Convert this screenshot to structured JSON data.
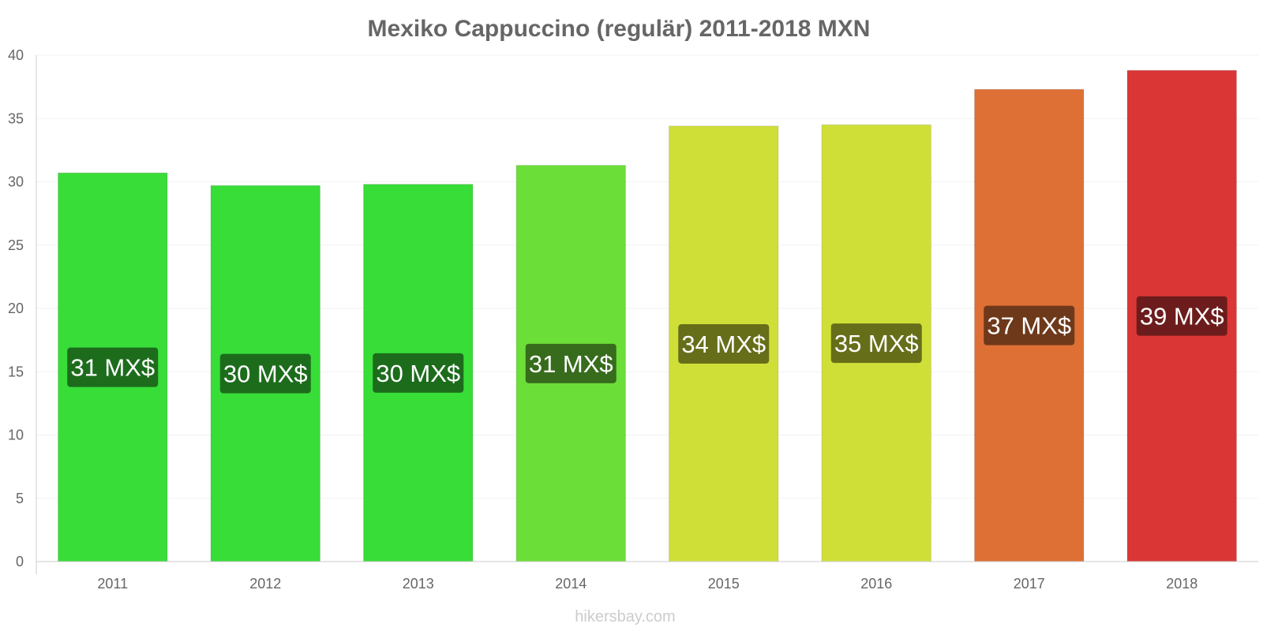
{
  "chart_data": {
    "type": "bar",
    "title": "Mexiko Cappuccino (regulär) 2011-2018 MXN",
    "xlabel": "",
    "ylabel": "",
    "ylim": [
      0,
      40
    ],
    "yticks": [
      0,
      5,
      10,
      15,
      20,
      25,
      30,
      35,
      40
    ],
    "grid": true,
    "categories": [
      "2011",
      "2012",
      "2013",
      "2014",
      "2015",
      "2016",
      "2017",
      "2018"
    ],
    "values": [
      30.7,
      29.7,
      29.8,
      31.3,
      34.4,
      34.5,
      37.3,
      38.8
    ],
    "labels": [
      "31 MX$",
      "30 MX$",
      "30 MX$",
      "31 MX$",
      "34 MX$",
      "35 MX$",
      "37 MX$",
      "39 MX$"
    ],
    "bar_colors": [
      "#38dd38",
      "#38dd38",
      "#38dd38",
      "#6cde38",
      "#cfdf38",
      "#cfdf38",
      "#de7035",
      "#db3636"
    ],
    "label_bg_colors": [
      "#1c6c1c",
      "#1c6c1c",
      "#1c6c1c",
      "#376c1c",
      "#676e1a",
      "#676e1a",
      "#6e391b",
      "#6c1c1c"
    ]
  },
  "watermark": "hikersbay.com"
}
